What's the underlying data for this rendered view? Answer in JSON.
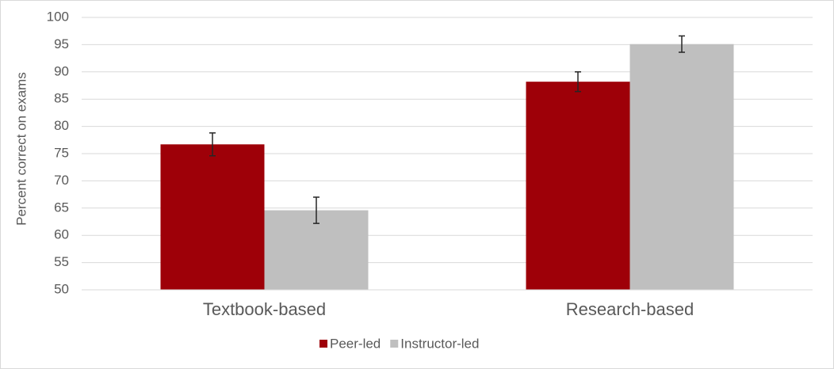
{
  "chart_data": {
    "type": "bar",
    "y_label": "Percent correct on exams",
    "categories": [
      "Textbook-based",
      "Research-based"
    ],
    "series": [
      {
        "name": "Peer-led",
        "color": "#9e0008",
        "values": [
          76.7,
          88.2
        ],
        "errors": [
          2.1,
          1.8
        ]
      },
      {
        "name": "Instructor-led",
        "color": "#bfbfbf",
        "values": [
          64.6,
          95.1
        ],
        "errors": [
          2.4,
          1.5
        ]
      }
    ],
    "ylim": [
      50,
      100
    ],
    "yticks": [
      50,
      55,
      60,
      65,
      70,
      75,
      80,
      85,
      90,
      95,
      100
    ],
    "grid": true,
    "legend": "bottom"
  }
}
